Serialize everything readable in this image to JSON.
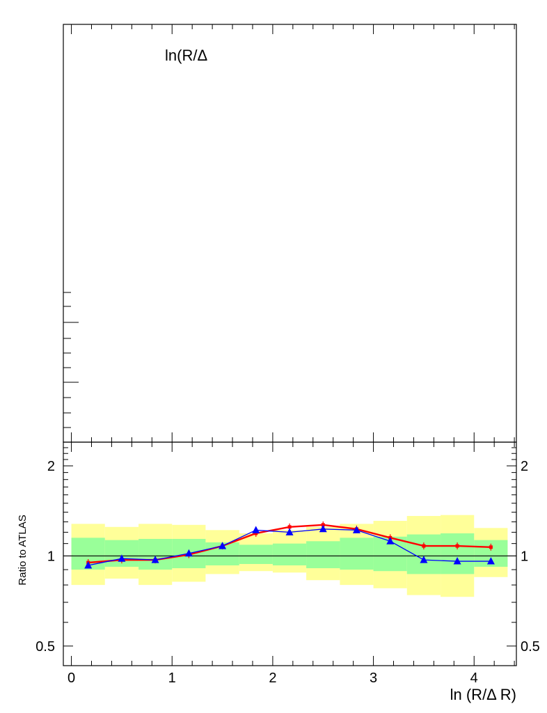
{
  "chart_data": {
    "type": "line",
    "upper_panel": {
      "annotation": "ln(R/Δ",
      "ticks_labeled": false
    },
    "ratio_panel": {
      "xlabel": "ln (R/Δ R)",
      "ylabel": "Ratio to ATLAS",
      "xlim": [
        -0.08,
        4.42
      ],
      "ylim": [
        0.43,
        2.4
      ],
      "y_log_scale": true,
      "x_ticks": [
        "0",
        "1",
        "2",
        "3",
        "4"
      ],
      "y_ticks": [
        "0.5",
        "1",
        "2"
      ],
      "reference_line": 1.0,
      "bins": [
        0,
        0.333,
        0.667,
        1.0,
        1.333,
        1.667,
        2.0,
        2.333,
        2.667,
        3.0,
        3.333,
        3.667,
        4.0,
        4.333
      ],
      "bands": [
        {
          "name": "",
          "color": "#ffff99",
          "low": [
            0.8,
            0.84,
            0.8,
            0.82,
            0.87,
            0.89,
            0.88,
            0.83,
            0.8,
            0.78,
            0.74,
            0.73,
            0.85
          ],
          "high": [
            1.28,
            1.25,
            1.28,
            1.27,
            1.22,
            1.19,
            1.22,
            1.25,
            1.28,
            1.31,
            1.36,
            1.37,
            1.24
          ]
        },
        {
          "name": "",
          "color": "#99ff99",
          "low": [
            0.9,
            0.92,
            0.9,
            0.91,
            0.93,
            0.94,
            0.93,
            0.91,
            0.9,
            0.89,
            0.87,
            0.87,
            0.92
          ],
          "high": [
            1.15,
            1.13,
            1.14,
            1.14,
            1.11,
            1.09,
            1.1,
            1.12,
            1.15,
            1.16,
            1.18,
            1.19,
            1.13
          ]
        }
      ],
      "series": [
        {
          "name": "",
          "color": "#ff0000",
          "marker": "square",
          "x": [
            0.167,
            0.5,
            0.833,
            1.167,
            1.5,
            1.833,
            2.167,
            2.5,
            2.833,
            3.167,
            3.5,
            3.833,
            4.167
          ],
          "y": [
            0.95,
            0.97,
            0.97,
            1.01,
            1.08,
            1.19,
            1.25,
            1.27,
            1.23,
            1.15,
            1.08,
            1.08,
            1.07
          ]
        },
        {
          "name": "",
          "color": "#0000ff",
          "marker": "triangle",
          "x": [
            0.167,
            0.5,
            0.833,
            1.167,
            1.5,
            1.833,
            2.167,
            2.5,
            2.833,
            3.167,
            3.5,
            3.833,
            4.167
          ],
          "y": [
            0.93,
            0.98,
            0.97,
            1.02,
            1.08,
            1.22,
            1.2,
            1.23,
            1.22,
            1.12,
            0.97,
            0.96,
            0.96
          ]
        }
      ]
    }
  }
}
